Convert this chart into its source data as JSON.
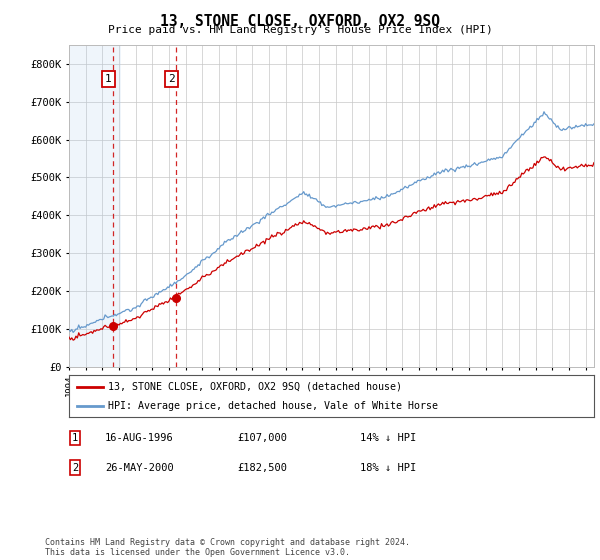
{
  "title": "13, STONE CLOSE, OXFORD, OX2 9SQ",
  "subtitle": "Price paid vs. HM Land Registry's House Price Index (HPI)",
  "ylim": [
    0,
    850000
  ],
  "yticks": [
    0,
    100000,
    200000,
    300000,
    400000,
    500000,
    600000,
    700000,
    800000
  ],
  "ytick_labels": [
    "£0",
    "£100K",
    "£200K",
    "£300K",
    "£400K",
    "£500K",
    "£600K",
    "£700K",
    "£800K"
  ],
  "year_start": 1994,
  "year_end": 2025,
  "sale1_year": 1996.62,
  "sale1_price": 107000,
  "sale2_year": 2000.39,
  "sale2_price": 182500,
  "line_color_price": "#cc0000",
  "line_color_hpi": "#6699cc",
  "dashed_line_color": "#cc0000",
  "legend_label1": "13, STONE CLOSE, OXFORD, OX2 9SQ (detached house)",
  "legend_label2": "HPI: Average price, detached house, Vale of White Horse",
  "sale1_date": "16-AUG-1996",
  "sale1_price_str": "£107,000",
  "sale1_hpi": "14% ↓ HPI",
  "sale2_date": "26-MAY-2000",
  "sale2_price_str": "£182,500",
  "sale2_hpi": "18% ↓ HPI",
  "footnote": "Contains HM Land Registry data © Crown copyright and database right 2024.\nThis data is licensed under the Open Government Licence v3.0.",
  "bg_color": "#ffffff",
  "grid_color": "#c8c8c8"
}
